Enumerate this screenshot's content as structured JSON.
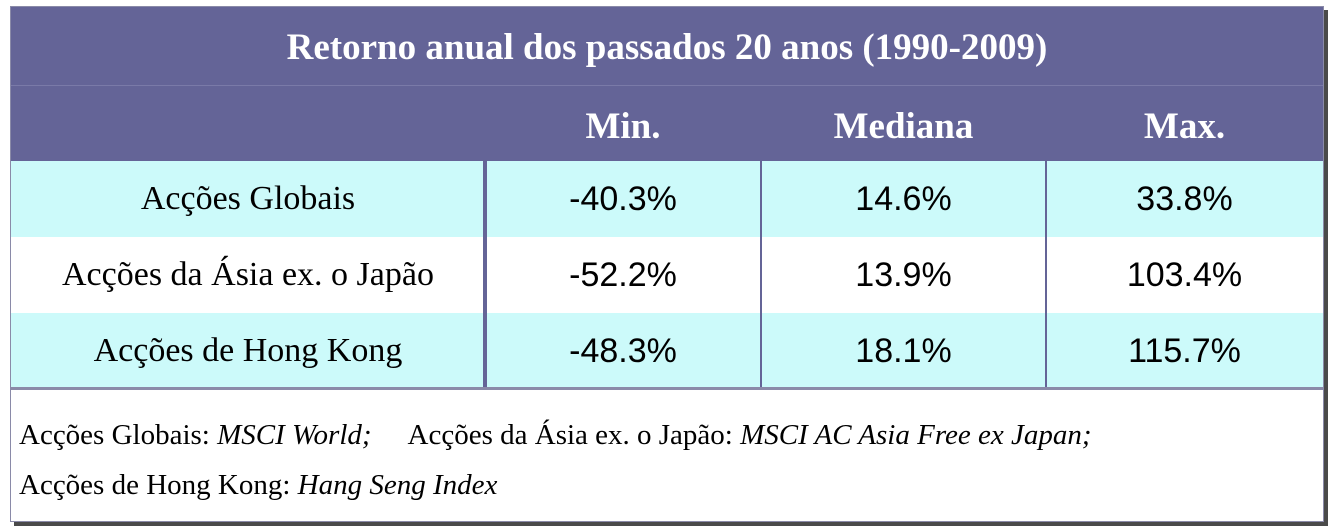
{
  "table": {
    "title": "Retorno anual dos passados 20 anos (1990-2009)",
    "columns": [
      "Min.",
      "Mediana",
      "Max."
    ],
    "rows": [
      {
        "label": "Acções Globais",
        "min": "-40.3%",
        "median": "14.6%",
        "max": "33.8%"
      },
      {
        "label": "Acções da Ásia ex. o Japão",
        "min": "-52.2%",
        "median": "13.9%",
        "max": "103.4%"
      },
      {
        "label": "Acções de Hong Kong",
        "min": "-48.3%",
        "median": "18.1%",
        "max": "115.7%"
      }
    ]
  },
  "footnote": {
    "line1": [
      {
        "label": "Acções Globais: ",
        "index": "MSCI World;"
      },
      {
        "label": "Acções da Ásia ex. o Japão: ",
        "index": "MSCI AC Asia Free ex Japan;"
      }
    ],
    "line2": [
      {
        "label": "Acções de Hong Kong: ",
        "index": "Hang Seng Index"
      }
    ]
  },
  "colors": {
    "header": "#646497",
    "row_alt": "#ccfafa",
    "row": "#ffffff"
  }
}
